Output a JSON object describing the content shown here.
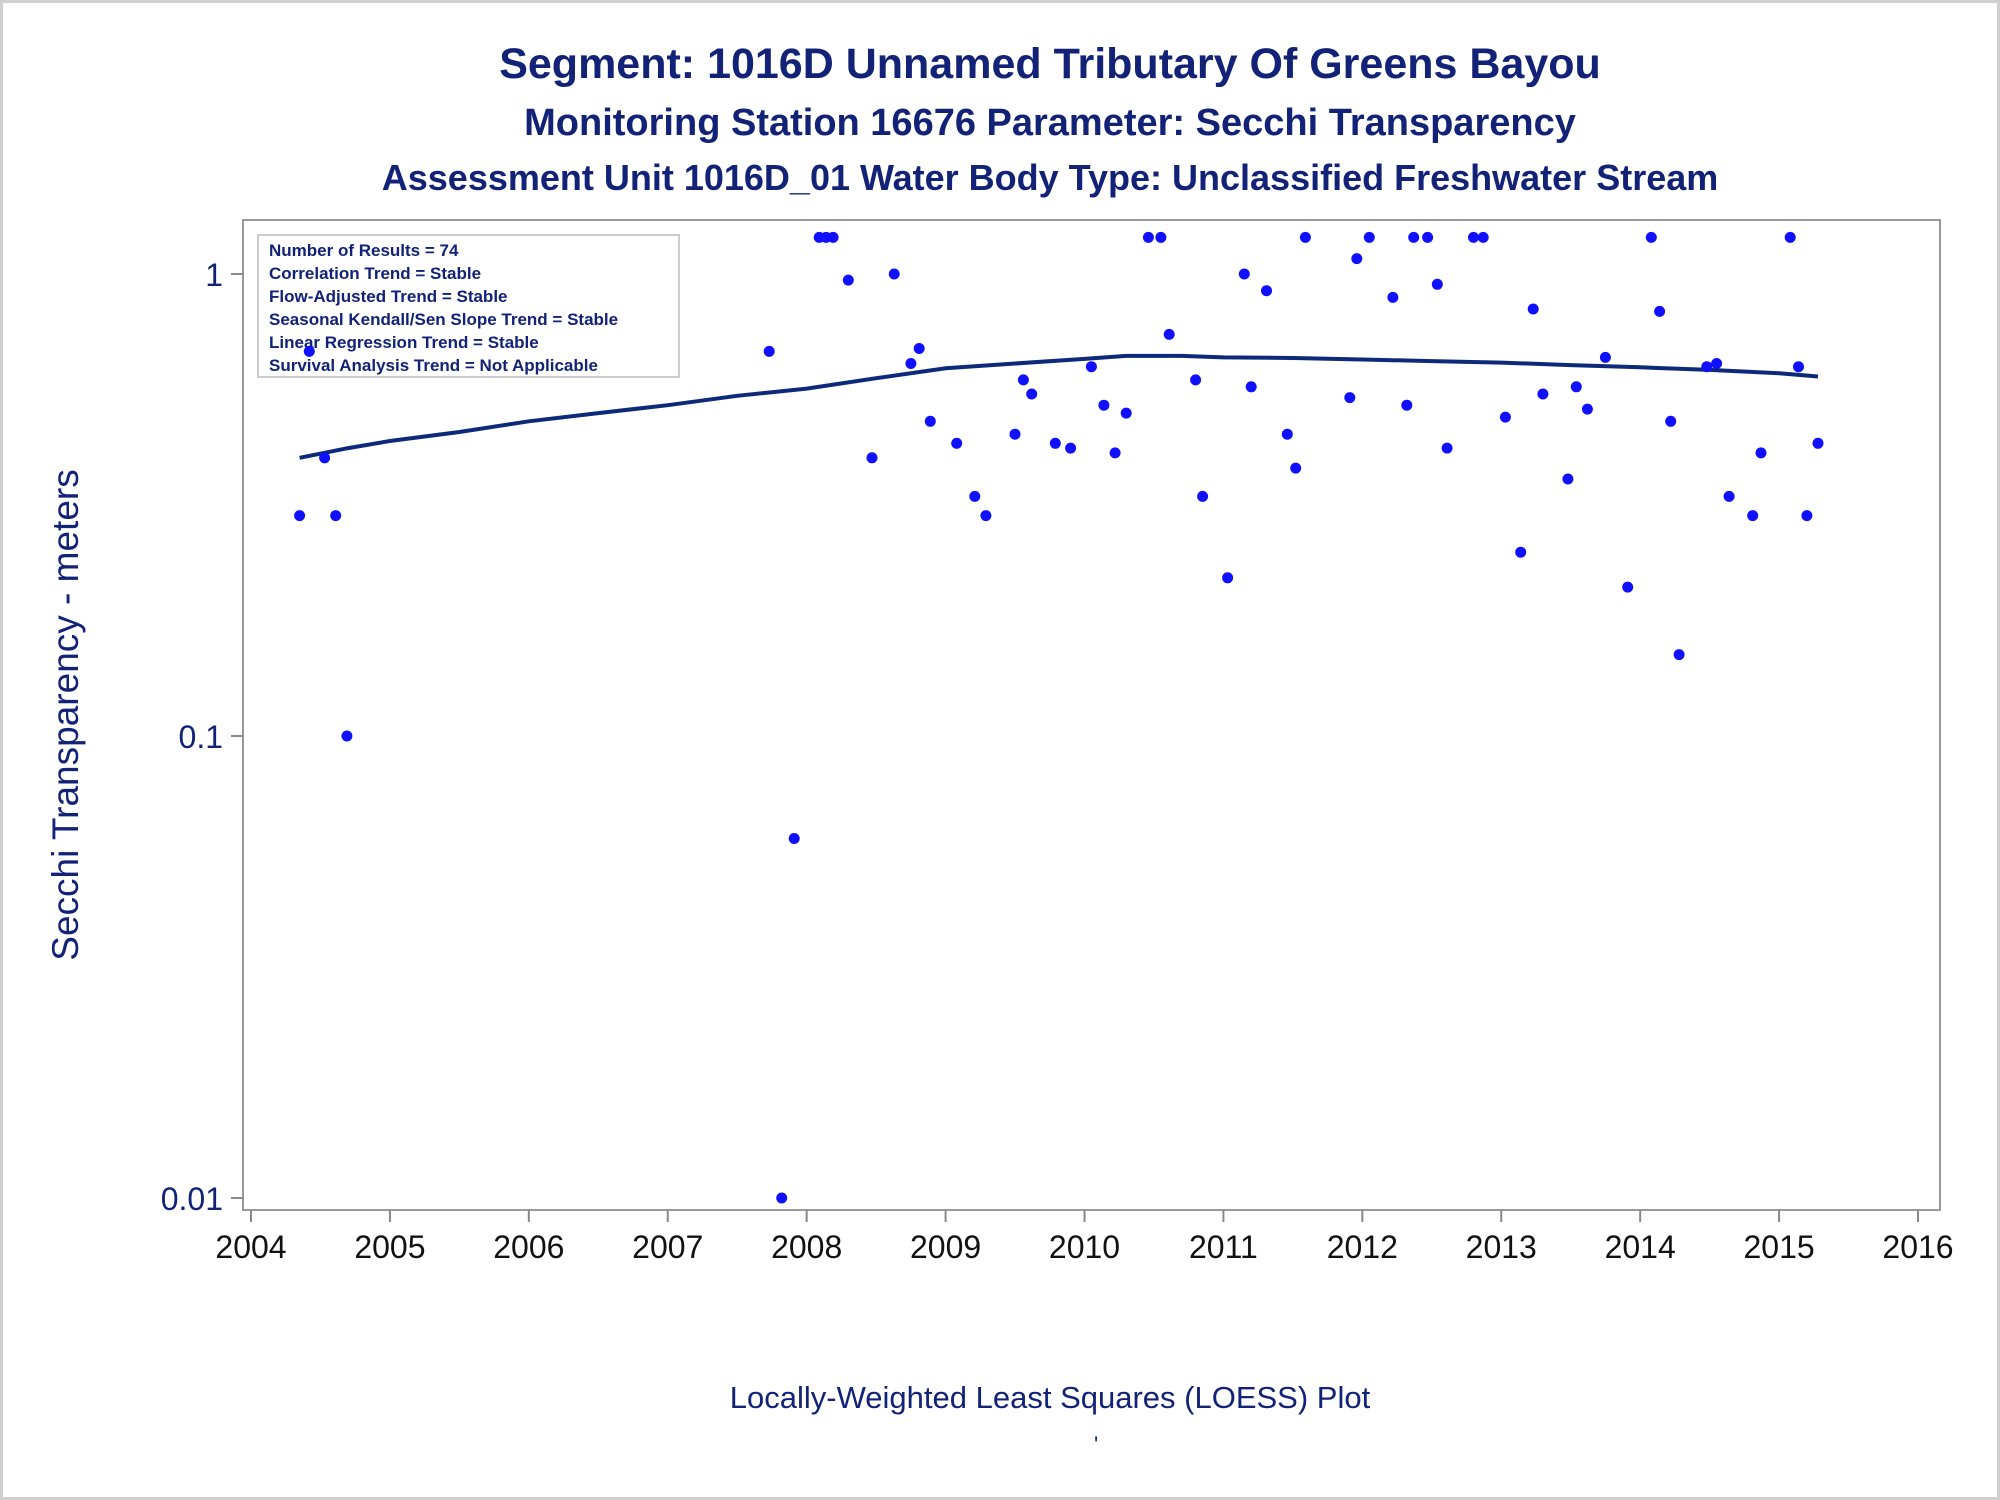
{
  "titles": {
    "line1": "Segment: 1016D  Unnamed Tributary Of Greens Bayou",
    "line2": "Monitoring Station 16676 Parameter: Secchi Transparency",
    "line3": "Assessment Unit 1016D_01   Water Body Type: Unclassified Freshwater Stream"
  },
  "footnote": "Locally-Weighted Least Squares (LOESS) Plot",
  "footnote_mark": "'",
  "stats_box": [
    "Number of Results = 74",
    "Correlation Trend = Stable",
    "Flow-Adjusted Trend = Stable",
    "Seasonal Kendall/Sen Slope Trend = Stable",
    "Linear Regression Trend = Stable",
    "Survival Analysis Trend = Not Applicable"
  ],
  "colors": {
    "text": "#112277",
    "points": "#1010ff",
    "loess": "#0d2a7a",
    "axis": "#888888"
  },
  "chart_data": {
    "type": "scatter",
    "ylabel": "Secchi Transparency - meters",
    "xlabel": "",
    "y_scale": "log",
    "ylim": [
      0.01,
      1.3
    ],
    "xlim": [
      2004,
      2016
    ],
    "yticks": [
      {
        "value": 0.01,
        "label": "0.01"
      },
      {
        "value": 0.1,
        "label": "0.1"
      },
      {
        "value": 1,
        "label": "1"
      }
    ],
    "xticks": [
      {
        "value": 2004,
        "label": "2004"
      },
      {
        "value": 2005,
        "label": "2005"
      },
      {
        "value": 2006,
        "label": "2006"
      },
      {
        "value": 2007,
        "label": "2007"
      },
      {
        "value": 2008,
        "label": "2008"
      },
      {
        "value": 2009,
        "label": "2009"
      },
      {
        "value": 2010,
        "label": "2010"
      },
      {
        "value": 2011,
        "label": "2011"
      },
      {
        "value": 2012,
        "label": "2012"
      },
      {
        "value": 2013,
        "label": "2013"
      },
      {
        "value": 2014,
        "label": "2014"
      },
      {
        "value": 2015,
        "label": "2015"
      },
      {
        "value": 2016,
        "label": "2016"
      }
    ],
    "points": [
      [
        2004.35,
        0.3
      ],
      [
        2004.42,
        0.68
      ],
      [
        2004.53,
        0.4
      ],
      [
        2004.61,
        0.3
      ],
      [
        2004.69,
        0.1
      ],
      [
        2007.73,
        0.68
      ],
      [
        2007.82,
        0.01
      ],
      [
        2007.91,
        0.06
      ],
      [
        2008.09,
        1.2
      ],
      [
        2008.14,
        1.2
      ],
      [
        2008.19,
        1.2
      ],
      [
        2008.3,
        0.97
      ],
      [
        2008.47,
        0.4
      ],
      [
        2008.63,
        1.0
      ],
      [
        2008.75,
        0.64
      ],
      [
        2008.81,
        0.69
      ],
      [
        2008.89,
        0.48
      ],
      [
        2009.08,
        0.43
      ],
      [
        2009.21,
        0.33
      ],
      [
        2009.29,
        0.3
      ],
      [
        2009.5,
        0.45
      ],
      [
        2009.56,
        0.59
      ],
      [
        2009.62,
        0.55
      ],
      [
        2009.79,
        0.43
      ],
      [
        2009.9,
        0.42
      ],
      [
        2010.05,
        0.63
      ],
      [
        2010.14,
        0.52
      ],
      [
        2010.22,
        0.41
      ],
      [
        2010.3,
        0.5
      ],
      [
        2010.46,
        1.2
      ],
      [
        2010.55,
        1.2
      ],
      [
        2010.61,
        0.74
      ],
      [
        2010.8,
        0.59
      ],
      [
        2010.85,
        0.33
      ],
      [
        2011.03,
        0.22
      ],
      [
        2011.15,
        1.0
      ],
      [
        2011.2,
        0.57
      ],
      [
        2011.31,
        0.92
      ],
      [
        2011.46,
        0.45
      ],
      [
        2011.52,
        0.38
      ],
      [
        2011.59,
        1.2
      ],
      [
        2011.91,
        0.54
      ],
      [
        2011.96,
        1.08
      ],
      [
        2012.05,
        1.2
      ],
      [
        2012.22,
        0.89
      ],
      [
        2012.32,
        0.52
      ],
      [
        2012.37,
        1.2
      ],
      [
        2012.47,
        1.2
      ],
      [
        2012.54,
        0.95
      ],
      [
        2012.61,
        0.42
      ],
      [
        2012.8,
        1.2
      ],
      [
        2012.87,
        1.2
      ],
      [
        2013.03,
        0.49
      ],
      [
        2013.14,
        0.25
      ],
      [
        2013.23,
        0.84
      ],
      [
        2013.3,
        0.55
      ],
      [
        2013.48,
        0.36
      ],
      [
        2013.54,
        0.57
      ],
      [
        2013.62,
        0.51
      ],
      [
        2013.75,
        0.66
      ],
      [
        2013.91,
        0.21
      ],
      [
        2014.08,
        1.2
      ],
      [
        2014.14,
        0.83
      ],
      [
        2014.22,
        0.48
      ],
      [
        2014.28,
        0.15
      ],
      [
        2014.48,
        0.63
      ],
      [
        2014.55,
        0.64
      ],
      [
        2014.64,
        0.33
      ],
      [
        2014.81,
        0.3
      ],
      [
        2014.87,
        0.41
      ],
      [
        2015.08,
        1.2
      ],
      [
        2015.14,
        0.63
      ],
      [
        2015.2,
        0.3
      ],
      [
        2015.28,
        0.43
      ]
    ],
    "loess": [
      [
        2004.35,
        0.4
      ],
      [
        2004.7,
        0.42
      ],
      [
        2005.0,
        0.435
      ],
      [
        2005.5,
        0.455
      ],
      [
        2006.0,
        0.48
      ],
      [
        2006.5,
        0.5
      ],
      [
        2007.0,
        0.52
      ],
      [
        2007.5,
        0.545
      ],
      [
        2008.0,
        0.565
      ],
      [
        2008.5,
        0.595
      ],
      [
        2009.0,
        0.625
      ],
      [
        2009.5,
        0.64
      ],
      [
        2010.0,
        0.655
      ],
      [
        2010.3,
        0.665
      ],
      [
        2010.7,
        0.665
      ],
      [
        2011.0,
        0.66
      ],
      [
        2011.5,
        0.658
      ],
      [
        2012.0,
        0.653
      ],
      [
        2012.5,
        0.648
      ],
      [
        2013.0,
        0.643
      ],
      [
        2013.5,
        0.635
      ],
      [
        2014.0,
        0.628
      ],
      [
        2014.5,
        0.62
      ],
      [
        2015.0,
        0.61
      ],
      [
        2015.28,
        0.6
      ]
    ]
  }
}
